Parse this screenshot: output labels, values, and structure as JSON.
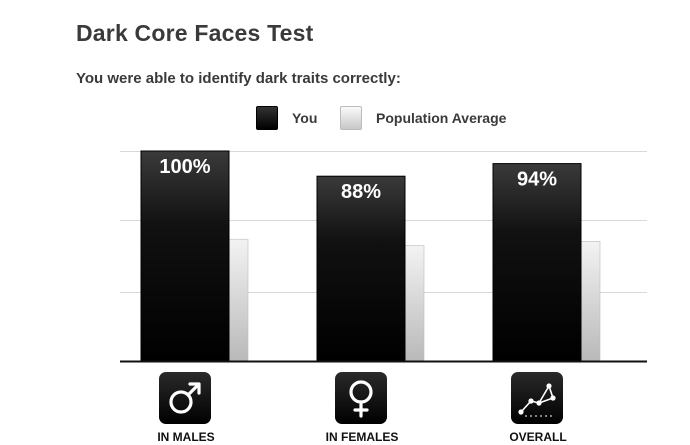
{
  "title": "Dark Core Faces Test",
  "subtitle": "You were able to identify dark traits correctly:",
  "legend": {
    "you_label": "You",
    "population_label": "Population Average"
  },
  "chart_data": {
    "type": "bar",
    "categories": [
      "IN MALES",
      "IN FEMALES",
      "OVERALL"
    ],
    "series": [
      {
        "name": "You",
        "values": [
          100,
          88,
          94
        ],
        "color": "#000000"
      },
      {
        "name": "Population Average",
        "values": [
          58,
          55,
          57
        ],
        "color": "#cccccc"
      }
    ],
    "data_labels": [
      "100%",
      "88%",
      "94%"
    ],
    "ylim": [
      0,
      100
    ],
    "grid": true,
    "legend_position": "top-right"
  },
  "icons": [
    "male-symbol-icon",
    "female-symbol-icon",
    "overall-network-icon"
  ],
  "colors": {
    "you_bar": "#000000",
    "population_bar": "#cccccc",
    "grid": "#d9d9d9",
    "baseline": "#111111"
  }
}
